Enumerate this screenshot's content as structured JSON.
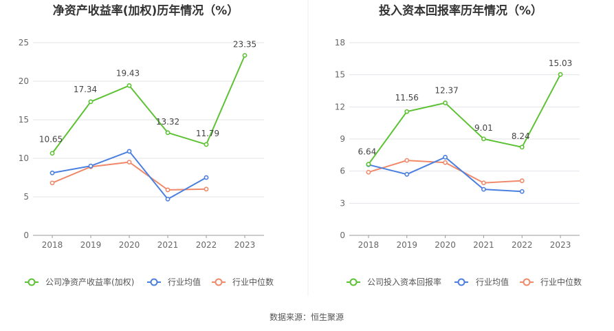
{
  "source": "数据来源：恒生聚源",
  "chart_data": [
    {
      "type": "line",
      "title": "净资产收益率(加权)历年情况（%）",
      "categories": [
        "2018",
        "2019",
        "2020",
        "2021",
        "2022",
        "2023"
      ],
      "ylim": [
        0,
        25
      ],
      "yticks": [
        0,
        5,
        10,
        15,
        20,
        25
      ],
      "grid": true,
      "legend_position": "bottom",
      "series": [
        {
          "name": "公司净资产收益率(加权)",
          "color": "#5cc233",
          "labeled": true,
          "values": [
            10.65,
            17.34,
            19.43,
            13.32,
            11.79,
            23.35
          ],
          "labels": [
            "10.65",
            "17.34",
            "19.43",
            "13.32",
            "11.79",
            "23.35"
          ]
        },
        {
          "name": "行业均值",
          "color": "#4a7fe0",
          "labeled": false,
          "values": [
            8.1,
            9.0,
            10.9,
            4.7,
            7.5,
            null
          ]
        },
        {
          "name": "行业中位数",
          "color": "#f0896a",
          "labeled": false,
          "values": [
            6.8,
            8.9,
            9.5,
            5.9,
            6.0,
            null
          ]
        }
      ]
    },
    {
      "type": "line",
      "title": "投入资本回报率历年情况（%）",
      "categories": [
        "2018",
        "2019",
        "2020",
        "2021",
        "2022",
        "2023"
      ],
      "ylim": [
        0,
        18
      ],
      "yticks": [
        0,
        3,
        6,
        9,
        12,
        15,
        18
      ],
      "grid": true,
      "legend_position": "bottom",
      "series": [
        {
          "name": "公司投入资本回报率",
          "color": "#5cc233",
          "labeled": true,
          "values": [
            6.64,
            11.56,
            12.37,
            9.01,
            8.24,
            15.03
          ],
          "labels": [
            "6.64",
            "11.56",
            "12.37",
            "9.01",
            "8.24",
            "15.03"
          ]
        },
        {
          "name": "行业均值",
          "color": "#4a7fe0",
          "labeled": false,
          "values": [
            6.6,
            5.7,
            7.3,
            4.3,
            4.1,
            null
          ]
        },
        {
          "name": "行业中位数",
          "color": "#f0896a",
          "labeled": false,
          "values": [
            5.9,
            7.0,
            6.8,
            4.9,
            5.1,
            null
          ]
        }
      ]
    }
  ]
}
